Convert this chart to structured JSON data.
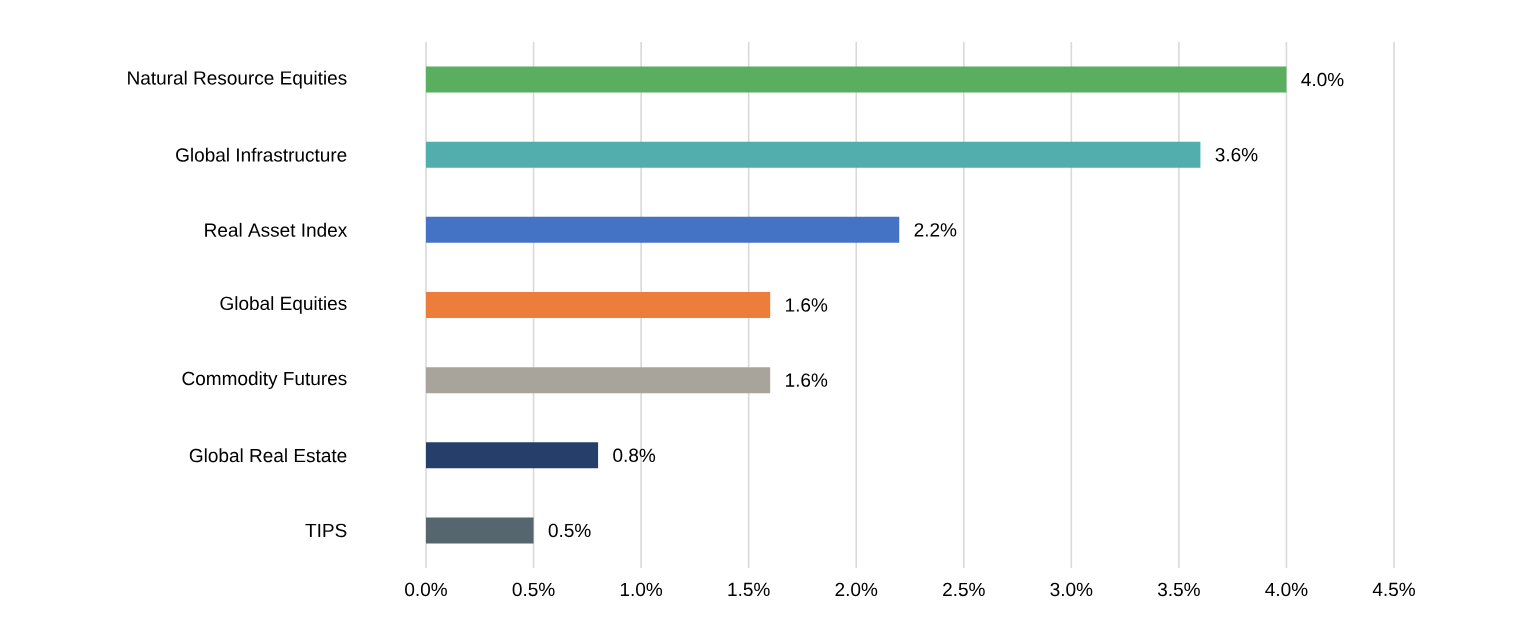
{
  "chart_data": {
    "type": "bar",
    "orientation": "horizontal",
    "categories": [
      "Natural Resource Equities",
      "Global Infrastructure",
      "Real Asset Index",
      "Global Equities",
      "Commodity Futures",
      "Global Real Estate",
      "TIPS"
    ],
    "values": [
      4.0,
      3.6,
      2.2,
      1.6,
      1.6,
      0.8,
      0.5
    ],
    "value_labels": [
      "4.0%",
      "3.6%",
      "2.2%",
      "1.6%",
      "1.6%",
      "0.8%",
      "0.5%"
    ],
    "colors": [
      "#5aae5f",
      "#52adad",
      "#4472c4",
      "#ed7d3a",
      "#a8a49b",
      "#253f6a",
      "#55666f"
    ],
    "xlim": [
      0,
      4.5
    ],
    "xticks": [
      {
        "value": 0,
        "label": "0.0%"
      },
      {
        "value": 0.5,
        "label": "0.5%"
      },
      {
        "value": 1,
        "label": "1.0%"
      },
      {
        "value": 1.5,
        "label": "1.5%"
      },
      {
        "value": 2,
        "label": "2.0%"
      },
      {
        "value": 2.5,
        "label": "2.5%"
      },
      {
        "value": 3,
        "label": "3.0%"
      },
      {
        "value": 3.5,
        "label": "3.5%"
      },
      {
        "value": 4,
        "label": "4.0%"
      },
      {
        "value": 4.5,
        "label": "4.5%"
      }
    ],
    "grid": "x"
  }
}
